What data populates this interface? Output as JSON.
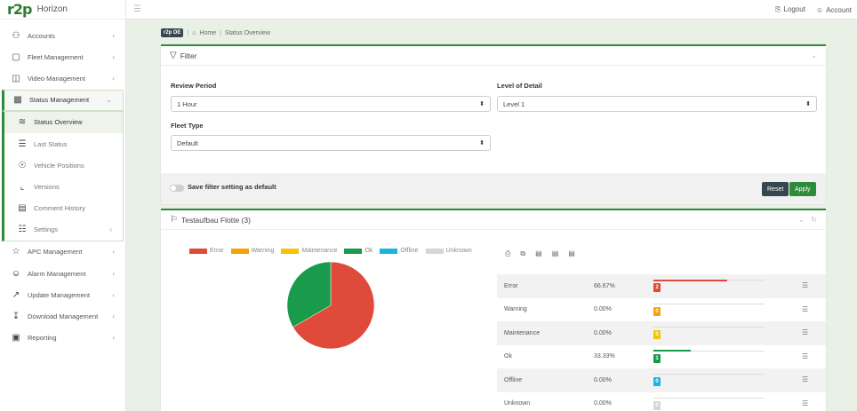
{
  "brand": {
    "name": "Horizon",
    "logo_text": "r2p"
  },
  "sidebar": {
    "items": [
      {
        "label": "Accounts",
        "icon": "users-icon"
      },
      {
        "label": "Fleet Management",
        "icon": "fleet-icon"
      },
      {
        "label": "Video Management",
        "icon": "video-icon"
      },
      {
        "label": "Status Management",
        "icon": "chart-icon"
      },
      {
        "label": "APC Management",
        "icon": "star-icon"
      },
      {
        "label": "Alarm Management",
        "icon": "bell-icon"
      },
      {
        "label": "Update Management",
        "icon": "update-icon"
      },
      {
        "label": "Download Management",
        "icon": "download-icon"
      },
      {
        "label": "Reporting",
        "icon": "report-icon"
      }
    ],
    "status_submenu": [
      {
        "label": "Status Overview",
        "icon": "activity-icon"
      },
      {
        "label": "Last Status",
        "icon": "list-icon"
      },
      {
        "label": "Vehicle Positions",
        "icon": "location-icon"
      },
      {
        "label": "Versions",
        "icon": "branch-icon"
      },
      {
        "label": "Comment History",
        "icon": "comment-icon"
      },
      {
        "label": "Settings",
        "icon": "settings-icon"
      }
    ]
  },
  "topbar": {
    "logout_label": "Logout",
    "account_label": "Account"
  },
  "breadcrumb": {
    "badge": "r2p DE",
    "home": "Home",
    "current": "Status Overview"
  },
  "filter": {
    "title": "Filter",
    "review_period_label": "Review Period",
    "review_period_value": "1 Hour",
    "level_label": "Level of Detail",
    "level_value": "Level 1",
    "fleet_type_label": "Fleet Type",
    "fleet_type_value": "Default",
    "save_default_label": "Save filter setting as default",
    "reset_label": "Reset",
    "apply_label": "Apply"
  },
  "fleet_card": {
    "title": "Testaufbau Flotte (3)"
  },
  "colors": {
    "error": "#e04a3a",
    "warning": "#f0a30a",
    "maintenance": "#f5c400",
    "ok": "#1a9a4b",
    "offline": "#19b5e0",
    "unknown": "#d3d6da",
    "accent": "#2e8b3a"
  },
  "chart_data": {
    "type": "pie",
    "legend": [
      "Error",
      "Warning",
      "Maintenance",
      "Ok",
      "Offline",
      "Unknown"
    ],
    "slices": [
      {
        "name": "Error",
        "value": 66.67
      },
      {
        "name": "Ok",
        "value": 33.33
      }
    ]
  },
  "status_rows": [
    {
      "name": "Error",
      "percent": "66.67%",
      "count": "2",
      "fraction": 0.6667,
      "color_key": "error"
    },
    {
      "name": "Warning",
      "percent": "0.00%",
      "count": "0",
      "fraction": 0,
      "color_key": "warning"
    },
    {
      "name": "Maintenance",
      "percent": "0.00%",
      "count": "0",
      "fraction": 0,
      "color_key": "maintenance"
    },
    {
      "name": "Ok",
      "percent": "33.33%",
      "count": "1",
      "fraction": 0.3333,
      "color_key": "ok"
    },
    {
      "name": "Offline",
      "percent": "0.00%",
      "count": "0",
      "fraction": 0,
      "color_key": "offline"
    },
    {
      "name": "Unknown",
      "percent": "0.00%",
      "count": "0",
      "fraction": 0,
      "color_key": "unknown"
    }
  ]
}
